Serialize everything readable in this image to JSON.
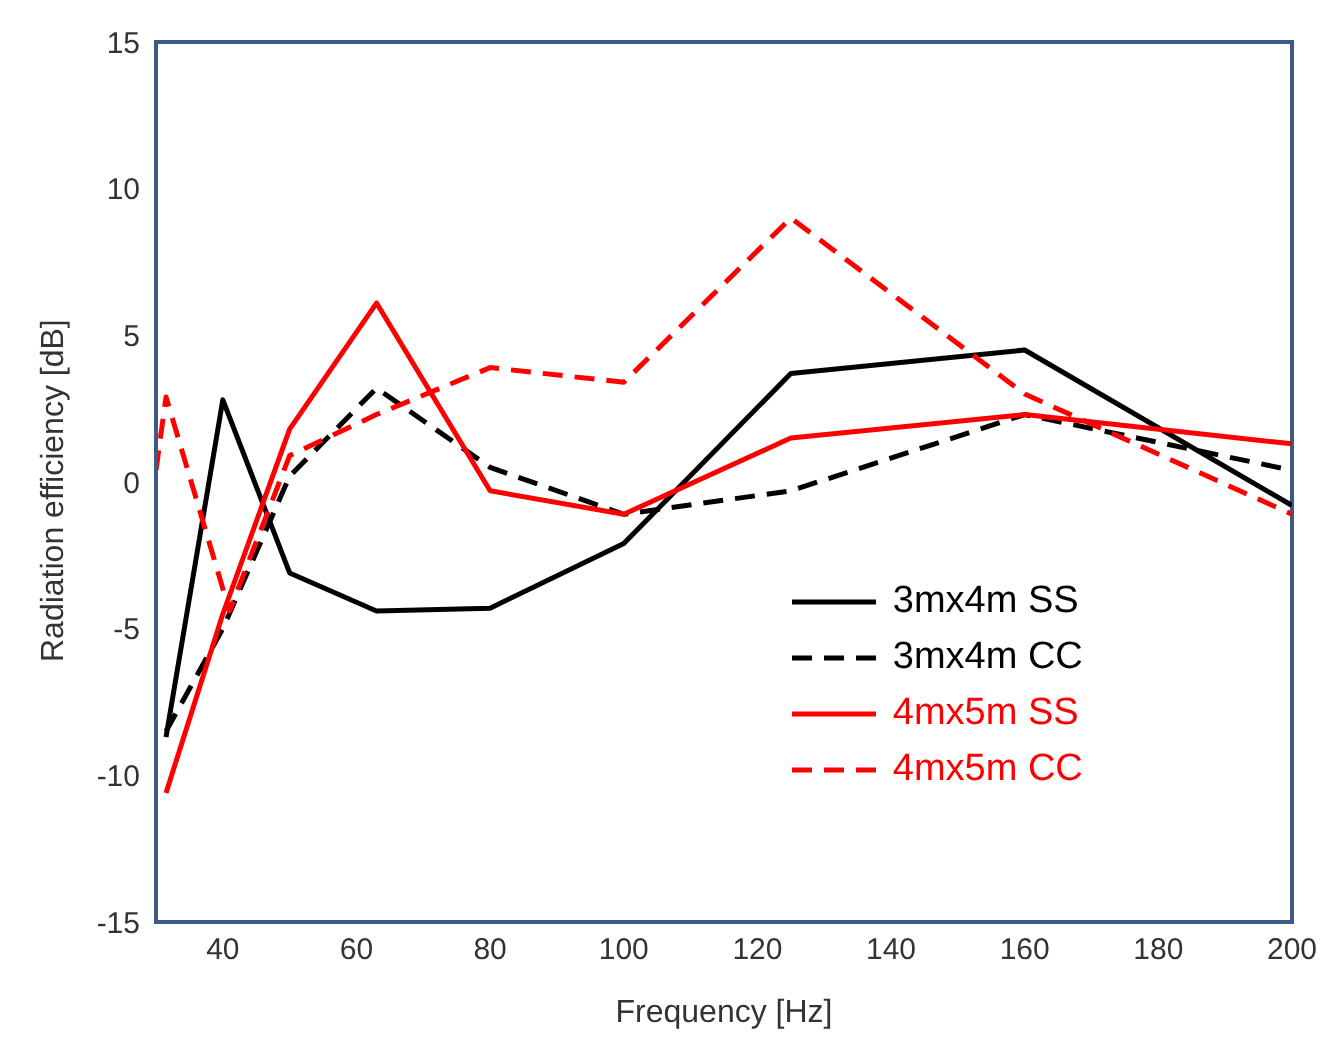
{
  "chart_data": {
    "type": "line",
    "xlabel": "Frequency [Hz]",
    "ylabel": "Radiation efficiency [dB]",
    "xlim": [
      30,
      200
    ],
    "xticks": [
      40,
      60,
      80,
      100,
      120,
      140,
      160,
      180,
      200
    ],
    "ylim": [
      -15,
      15
    ],
    "yticks": [
      -15,
      -10,
      -5,
      0,
      5,
      10,
      15
    ],
    "grid": false,
    "legend": "bottom right",
    "marker": "none",
    "series": [
      {
        "name": "3mx4m SS",
        "color": "#000000",
        "line_style": "solid",
        "x": [
          31.5,
          40,
          50,
          63,
          80,
          100,
          125,
          160,
          200
        ],
        "values": [
          -8.7,
          2.8,
          -3.1,
          -4.4,
          -4.3,
          -2.1,
          3.7,
          4.5,
          -0.8
        ]
      },
      {
        "name": "3mx4m CC",
        "color": "#000000",
        "line_style": "dashed",
        "x": [
          31.5,
          40,
          50,
          63,
          80,
          100,
          125,
          160,
          200
        ],
        "values": [
          -8.5,
          -5,
          0.2,
          3.2,
          0.5,
          -1.1,
          -0.3,
          2.3,
          0.4
        ]
      },
      {
        "name": "4mx5m SS",
        "color": "#ff0000",
        "line_style": "solid",
        "x": [
          31.5,
          40,
          50,
          63,
          80,
          100,
          125,
          160,
          200
        ],
        "values": [
          -10.6,
          -4.5,
          1.8,
          6.1,
          -0.3,
          -1.1,
          1.5,
          2.3,
          1.3
        ]
      },
      {
        "name": "4mx5m CC",
        "color": "#ff0000",
        "line_style": "dashed",
        "x": [
          30,
          31.5,
          41,
          50,
          63,
          80,
          100,
          125,
          160,
          200
        ],
        "values": [
          0.4,
          2.9,
          -4.4,
          0.9,
          2.3,
          3.9,
          3.4,
          9.0,
          3.0,
          -1.1
        ]
      }
    ]
  }
}
